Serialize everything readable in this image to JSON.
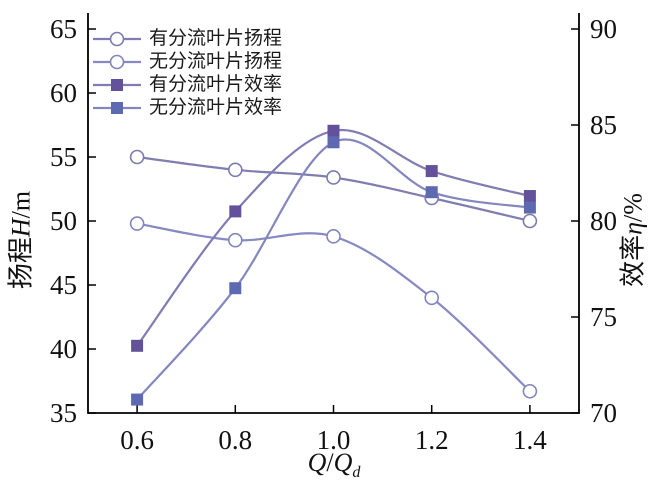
{
  "axes": {
    "x_title": {
      "q1": "Q",
      "slash": "/",
      "q2": "Q",
      "sub": "d"
    },
    "left_title": {
      "cn": "扬程",
      "var": "H",
      "unit": "/m"
    },
    "right_title": {
      "cn": "效率",
      "var": "η",
      "unit": "/%"
    }
  },
  "chart_data": {
    "type": "line",
    "x": [
      0.6,
      0.8,
      1.0,
      1.2,
      1.4
    ],
    "x_tick_labels": [
      "0.6",
      "0.8",
      "1.0",
      "1.2",
      "1.4"
    ],
    "xlabel": "Q/Q_d",
    "xlim": [
      0.5,
      1.5
    ],
    "grid": false,
    "legend_position": "top-left",
    "left_axis": {
      "label": "扬程H/m",
      "ticks": [
        35,
        40,
        45,
        50,
        55,
        60,
        65
      ],
      "lim": [
        35,
        65
      ]
    },
    "right_axis": {
      "label": "效率η/%",
      "ticks": [
        70,
        75,
        80,
        85,
        90
      ],
      "lim": [
        70,
        90
      ]
    },
    "series": [
      {
        "id": "head-with-splitter",
        "name": "有分流叶片扬程",
        "axis": "left",
        "marker": "circle",
        "line_color": "#807eb0",
        "marker_fill": "#ffffff",
        "marker_stroke": "#7d7bae",
        "values": [
          55.0,
          54.0,
          53.4,
          51.8,
          50.0
        ]
      },
      {
        "id": "head-without-splitter",
        "name": "无分流叶片扬程",
        "axis": "left",
        "marker": "circle",
        "line_color": "#8689c2",
        "marker_fill": "#ffffff",
        "marker_stroke": "#8285bc",
        "values": [
          49.8,
          48.5,
          48.8,
          44.0,
          36.7
        ]
      },
      {
        "id": "efficiency-with-splitter",
        "name": "有分流叶片效率",
        "axis": "right",
        "marker": "square",
        "line_color": "#817cb2",
        "marker_fill": "#64519c",
        "marker_stroke": "#64519c",
        "values": [
          73.5,
          80.5,
          84.7,
          82.6,
          81.3
        ]
      },
      {
        "id": "efficiency-without-splitter",
        "name": "无分流叶片效率",
        "axis": "right",
        "marker": "square",
        "line_color": "#8487bd",
        "marker_fill": "#5d6ab2",
        "marker_stroke": "#5d6ab2",
        "values": [
          70.7,
          76.5,
          84.1,
          81.5,
          80.7
        ]
      }
    ]
  }
}
